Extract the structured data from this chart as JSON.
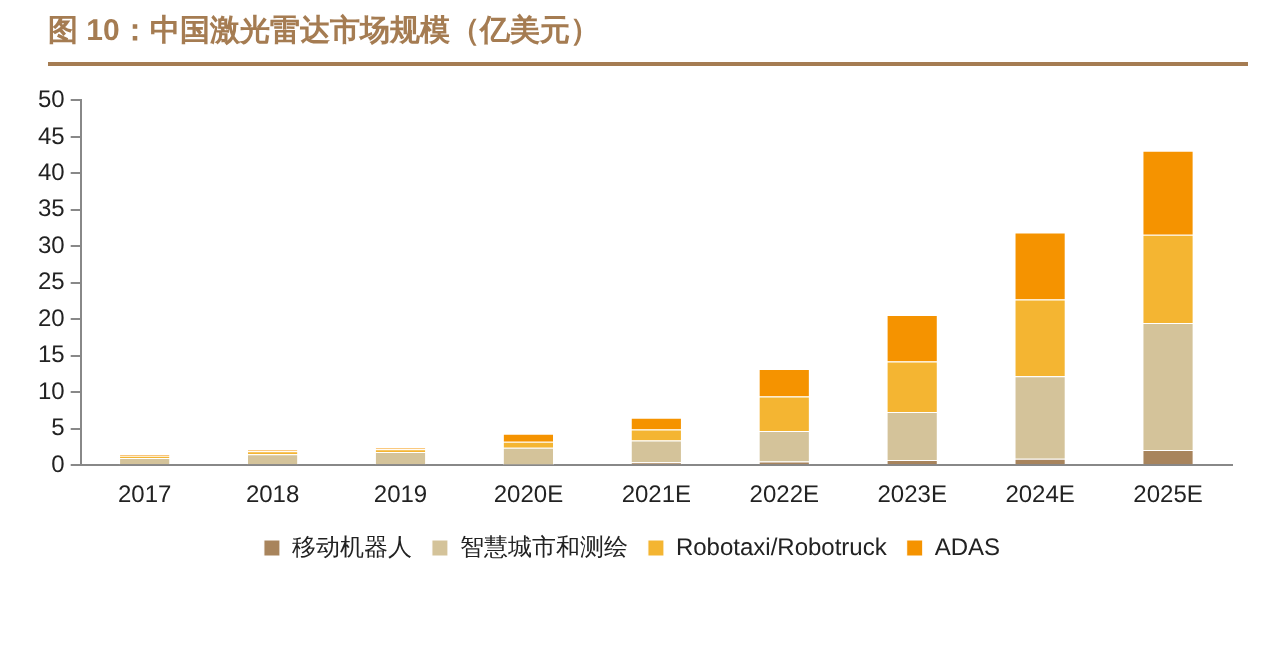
{
  "chart_data": {
    "type": "bar",
    "title": "图 10：中国激光雷达市场规模（亿美元）",
    "stacked": true,
    "categories": [
      "2017",
      "2018",
      "2019",
      "2020E",
      "2021E",
      "2022E",
      "2023E",
      "2024E",
      "2025E"
    ],
    "series": [
      {
        "name": "移动机器人",
        "color": "#a8845c",
        "values": [
          0,
          0,
          0,
          0.1,
          0.4,
          0.5,
          0.7,
          0.9,
          2.1
        ]
      },
      {
        "name": "智慧城市和测绘",
        "color": "#d4c39a",
        "values": [
          1.0,
          1.5,
          1.8,
          2.3,
          3.0,
          4.2,
          6.6,
          11.3,
          17.4
        ]
      },
      {
        "name": "Robotaxi/Robotruck",
        "color": "#f4b532",
        "values": [
          0.3,
          0.4,
          0.4,
          0.8,
          1.5,
          4.7,
          6.9,
          10.5,
          12.1
        ]
      },
      {
        "name": "ADAS",
        "color": "#f59300",
        "values": [
          0.2,
          0.2,
          0.2,
          1.1,
          1.6,
          3.8,
          6.4,
          9.2,
          11.5
        ]
      }
    ],
    "ylim": [
      0,
      50
    ],
    "yticks": [
      0,
      5,
      10,
      15,
      20,
      25,
      30,
      35,
      40,
      45,
      50
    ],
    "grid": false,
    "legend": "bottom"
  }
}
